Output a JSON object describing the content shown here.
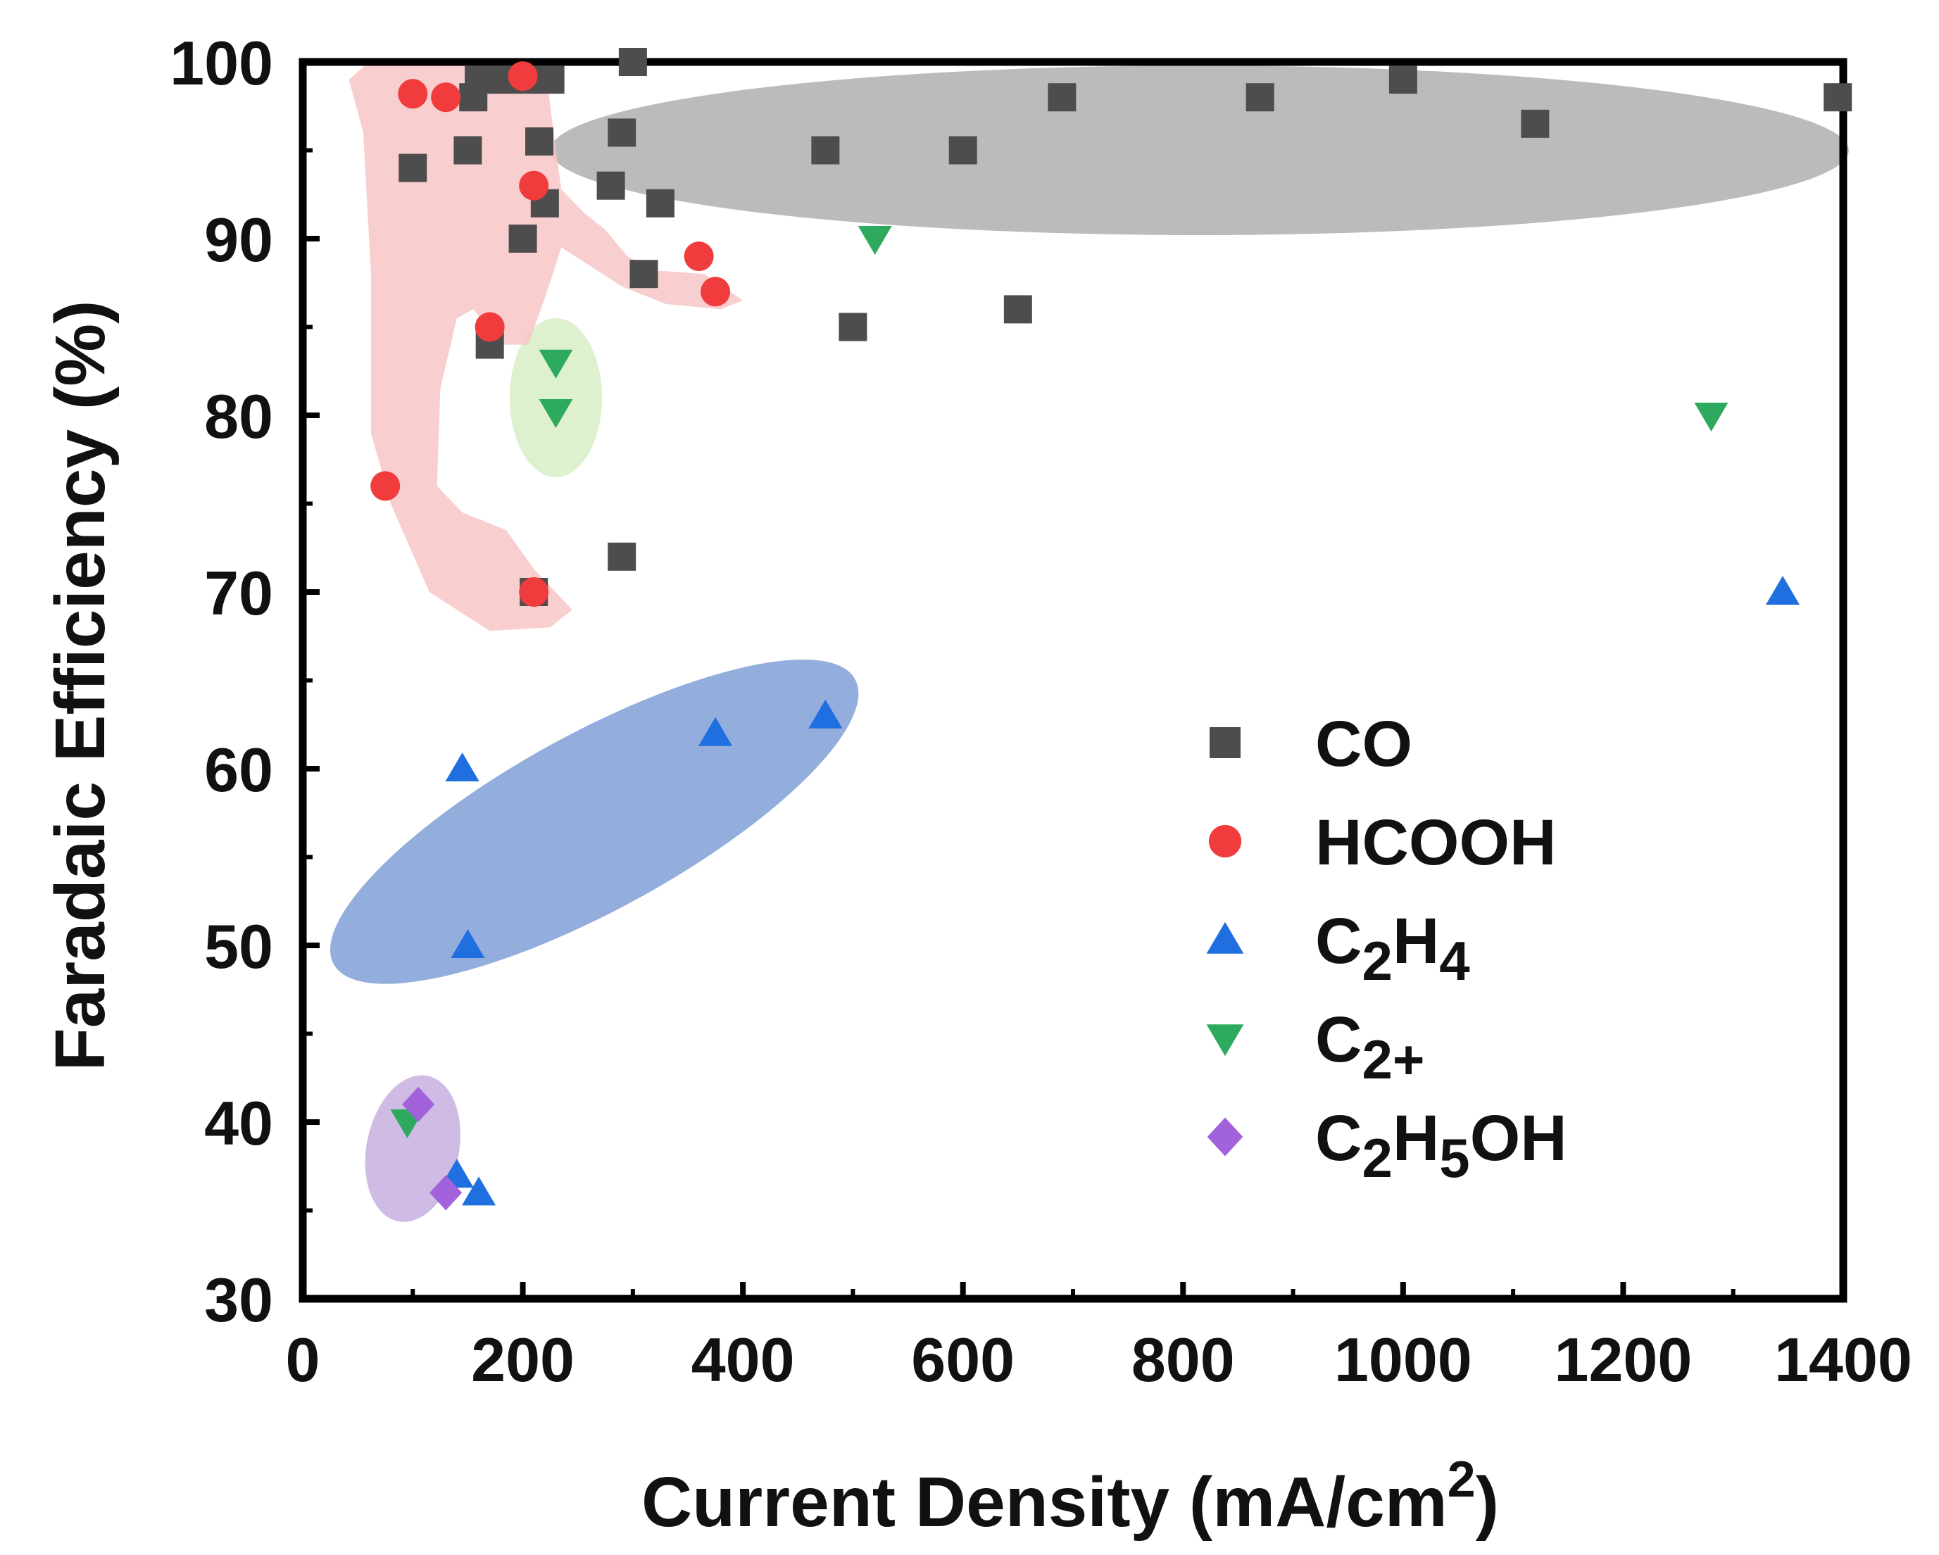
{
  "chart_data": {
    "type": "scatter",
    "xlabel": "Current Density (mA/cm",
    "xlabel_sup": "2",
    "xlabel_close": ")",
    "ylabel": "Faradaic Efficiency (%)",
    "xlim": [
      0,
      1400
    ],
    "ylim": [
      30,
      100
    ],
    "xticks": [
      0,
      200,
      400,
      600,
      800,
      1000,
      1200,
      1400
    ],
    "yticks": [
      30,
      40,
      50,
      60,
      70,
      80,
      90,
      100
    ],
    "legend_position": "lower-right",
    "series": [
      {
        "name": "CO",
        "label_parts": [
          [
            "CO",
            false
          ]
        ],
        "marker": "square",
        "color": "#4d4d4d",
        "points": [
          [
            100,
            94
          ],
          [
            150,
            95
          ],
          [
            155,
            98
          ],
          [
            160,
            99
          ],
          [
            175,
            99
          ],
          [
            170,
            84
          ],
          [
            200,
            90
          ],
          [
            200,
            99
          ],
          [
            215,
            95.5
          ],
          [
            220,
            92
          ],
          [
            225,
            99
          ],
          [
            280,
            93
          ],
          [
            290,
            96
          ],
          [
            290,
            72
          ],
          [
            300,
            100
          ],
          [
            310,
            88
          ],
          [
            325,
            92
          ],
          [
            475,
            95
          ],
          [
            500,
            85
          ],
          [
            600,
            95
          ],
          [
            650,
            86
          ],
          [
            690,
            98
          ],
          [
            870,
            98
          ],
          [
            1000,
            99
          ],
          [
            1120,
            96.5
          ],
          [
            1395,
            98
          ],
          [
            210,
            70
          ]
        ]
      },
      {
        "name": "HCOOH",
        "label_parts": [
          [
            "HCOOH",
            false
          ]
        ],
        "marker": "circle",
        "color": "#f03c3c",
        "points": [
          [
            100,
            98.2
          ],
          [
            130,
            98
          ],
          [
            200,
            99.2
          ],
          [
            210,
            93
          ],
          [
            170,
            85
          ],
          [
            360,
            89
          ],
          [
            375,
            87
          ],
          [
            75,
            76
          ],
          [
            210,
            70
          ]
        ]
      },
      {
        "name": "C2H4",
        "label_parts": [
          [
            "C",
            false
          ],
          [
            "2",
            true
          ],
          [
            "H",
            false
          ],
          [
            "4",
            true
          ]
        ],
        "marker": "triangle-up",
        "color": "#1f6fe0",
        "points": [
          [
            145,
            60
          ],
          [
            150,
            50
          ],
          [
            375,
            62
          ],
          [
            475,
            63
          ],
          [
            140,
            37
          ],
          [
            160,
            36
          ],
          [
            1345,
            70
          ]
        ]
      },
      {
        "name": "C2+",
        "label_parts": [
          [
            "C",
            false
          ],
          [
            "2+",
            true
          ]
        ],
        "marker": "triangle-down",
        "color": "#2eaa5e",
        "points": [
          [
            230,
            83
          ],
          [
            230,
            80.2
          ],
          [
            520,
            90
          ],
          [
            1280,
            80
          ],
          [
            95,
            40
          ]
        ]
      },
      {
        "name": "C2H5OH",
        "label_parts": [
          [
            "C",
            false
          ],
          [
            "2",
            true
          ],
          [
            "H",
            false
          ],
          [
            "5",
            true
          ],
          [
            "OH",
            false
          ]
        ],
        "marker": "diamond",
        "color": "#a262dc",
        "points": [
          [
            105,
            41
          ],
          [
            130,
            36
          ]
        ]
      }
    ],
    "regions": [
      {
        "name": "CO-region",
        "color": "#a8a8a8",
        "shape": "ellipse",
        "cx": 815,
        "cy": 95,
        "rx": 590,
        "ry": 4.8,
        "angle": 0
      },
      {
        "name": "C2H4-region",
        "color": "#7496d2",
        "shape": "ellipse",
        "cx": 265,
        "cy": 57,
        "rx": 270,
        "ry": 5,
        "angle": 0.5
      },
      {
        "name": "C2plus-region",
        "color": "#d5edc2",
        "shape": "ellipse",
        "cx": 230,
        "cy": 81,
        "rx": 42,
        "ry": 4.5,
        "angle": 0
      },
      {
        "name": "C2H5OH-region",
        "color": "#c2a8dc",
        "shape": "ellipse",
        "cx": 100,
        "cy": 38.5,
        "rx": 42,
        "ry": 4.2,
        "angle": -0.2
      },
      {
        "name": "HCOOH-region",
        "color": "#f8c6c6",
        "shape": "polygon",
        "points": [
          [
            42,
            99
          ],
          [
            60,
            100
          ],
          [
            220,
            100
          ],
          [
            230,
            95
          ],
          [
            235,
            92.8
          ],
          [
            255,
            91.5
          ],
          [
            275,
            90.5
          ],
          [
            295,
            89
          ],
          [
            320,
            88.2
          ],
          [
            365,
            88
          ],
          [
            400,
            86.5
          ],
          [
            380,
            86
          ],
          [
            330,
            86.3
          ],
          [
            290,
            87.3
          ],
          [
            260,
            88.5
          ],
          [
            235,
            89.5
          ],
          [
            222,
            87
          ],
          [
            205,
            84
          ],
          [
            180,
            84
          ],
          [
            155,
            86
          ],
          [
            140,
            85.5
          ],
          [
            125,
            81.5
          ],
          [
            122,
            76
          ],
          [
            145,
            74.5
          ],
          [
            185,
            73.5
          ],
          [
            210,
            71.3
          ],
          [
            245,
            69
          ],
          [
            225,
            68
          ],
          [
            170,
            67.8
          ],
          [
            115,
            70
          ],
          [
            80,
            75
          ],
          [
            62,
            79
          ],
          [
            62,
            88
          ],
          [
            55,
            96
          ]
        ]
      }
    ]
  }
}
